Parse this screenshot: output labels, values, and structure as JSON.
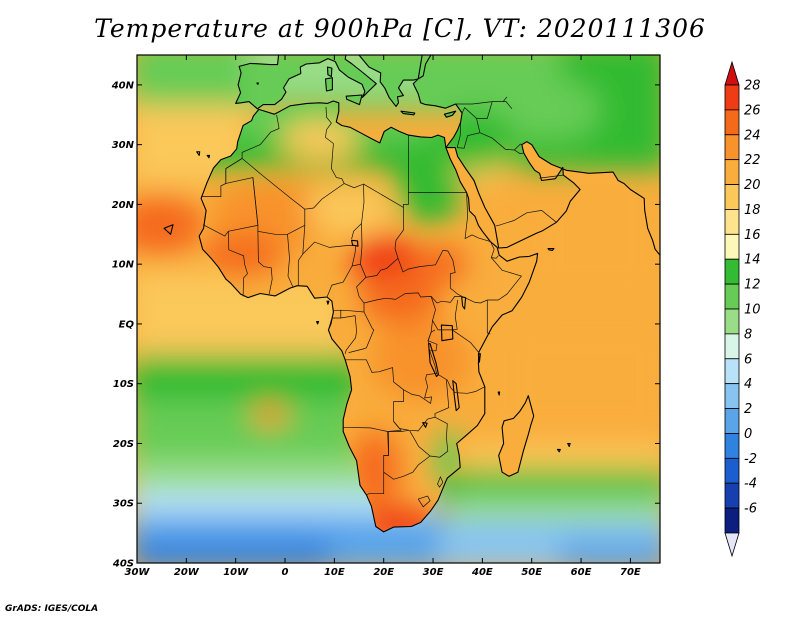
{
  "title": "Temperature at 900hPa [C], VT: 2020111306",
  "credit": "GrADS: IGES/COLA",
  "map": {
    "lon_range": [
      -30,
      76
    ],
    "lat_range": [
      -40,
      45
    ],
    "lon_ticks": [
      "30W",
      "20W",
      "10W",
      "0",
      "10E",
      "20E",
      "30E",
      "40E",
      "50E",
      "60E",
      "70E"
    ],
    "lat_ticks": [
      "40N",
      "30N",
      "20N",
      "10N",
      "EQ",
      "10S",
      "20S",
      "30S",
      "40S"
    ]
  },
  "colorbar": {
    "labels": [
      "28",
      "26",
      "24",
      "22",
      "20",
      "18",
      "16",
      "14",
      "12",
      "10",
      "8",
      "6",
      "4",
      "2",
      "0",
      "-2",
      "-4",
      "-6"
    ],
    "colors": [
      "#d01010",
      "#f03c14",
      "#f56a1a",
      "#f8922a",
      "#f9ad3c",
      "#fbc85a",
      "#fde48c",
      "#fdf7b8",
      "#33bb33",
      "#66cc55",
      "#99dd88",
      "#d8f6e8",
      "#b8e2f8",
      "#88c4f0",
      "#5aa4ea",
      "#3082e0",
      "#1a5ed0",
      "#1640b0",
      "#0c1e80",
      "#e6e6fa"
    ]
  }
}
